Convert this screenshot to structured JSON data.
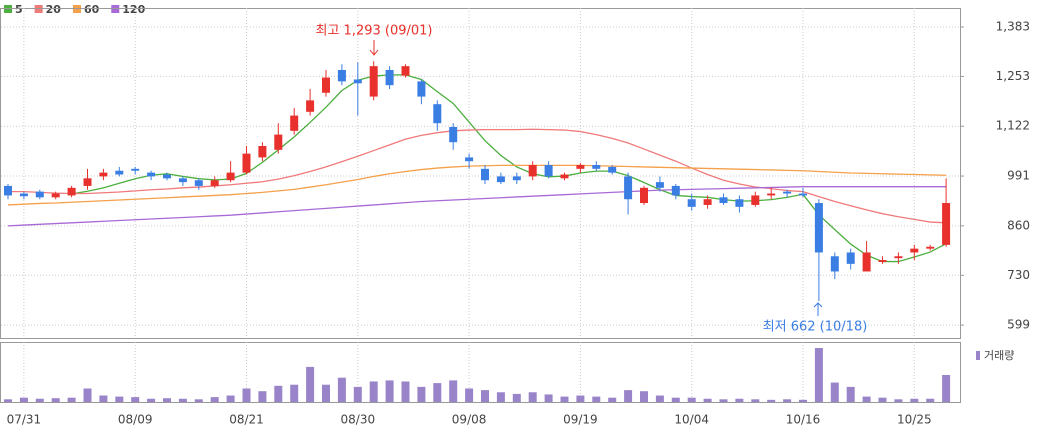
{
  "chart_data": {
    "type": "candlestick",
    "categories": [
      null,
      "07/31",
      null,
      null,
      null,
      null,
      null,
      null,
      "08/09",
      null,
      null,
      null,
      null,
      null,
      null,
      "08/21",
      null,
      null,
      null,
      null,
      null,
      null,
      "08/30",
      null,
      null,
      null,
      null,
      null,
      null,
      "09/08",
      null,
      null,
      null,
      null,
      null,
      null,
      "09/19",
      null,
      null,
      null,
      null,
      null,
      null,
      "10/04",
      null,
      null,
      null,
      null,
      null,
      null,
      "10/16",
      null,
      null,
      null,
      null,
      null,
      null,
      "10/25",
      null,
      null
    ],
    "open": [
      965,
      945,
      950,
      935,
      940,
      965,
      990,
      1005,
      1010,
      1000,
      995,
      985,
      980,
      965,
      980,
      1000,
      1040,
      1060,
      1110,
      1160,
      1210,
      1270,
      1245,
      1200,
      1270,
      1255,
      1240,
      1180,
      1120,
      1040,
      1010,
      990,
      990,
      990,
      1020,
      985,
      1010,
      1020,
      1015,
      990,
      920,
      975,
      965,
      930,
      915,
      935,
      930,
      915,
      940,
      950,
      945,
      920,
      780,
      790,
      740,
      765,
      775,
      790,
      800,
      810
    ],
    "high": [
      970,
      950,
      955,
      950,
      965,
      1010,
      1010,
      1015,
      1015,
      1005,
      1000,
      990,
      985,
      990,
      1030,
      1070,
      1080,
      1130,
      1170,
      1220,
      1270,
      1285,
      1290,
      1293,
      1280,
      1285,
      1245,
      1190,
      1130,
      1050,
      1020,
      1000,
      1000,
      1030,
      1030,
      1000,
      1025,
      1030,
      1020,
      1000,
      965,
      990,
      970,
      945,
      940,
      945,
      940,
      950,
      960,
      955,
      960,
      930,
      790,
      800,
      820,
      780,
      790,
      810,
      810,
      985
    ],
    "low": [
      930,
      930,
      930,
      930,
      935,
      955,
      980,
      990,
      995,
      980,
      980,
      965,
      955,
      960,
      975,
      995,
      1030,
      1050,
      1100,
      1150,
      1200,
      1230,
      1150,
      1190,
      1220,
      1250,
      1180,
      1110,
      1060,
      1010,
      970,
      970,
      970,
      980,
      985,
      980,
      1000,
      1005,
      995,
      890,
      915,
      950,
      930,
      900,
      905,
      915,
      895,
      910,
      930,
      935,
      935,
      662,
      720,
      745,
      740,
      760,
      760,
      770,
      795,
      805
    ],
    "close": [
      940,
      938,
      935,
      945,
      960,
      985,
      1000,
      995,
      1005,
      990,
      985,
      975,
      965,
      980,
      1000,
      1050,
      1070,
      1100,
      1150,
      1190,
      1250,
      1240,
      1235,
      1280,
      1230,
      1280,
      1200,
      1130,
      1080,
      1030,
      980,
      975,
      980,
      1020,
      990,
      995,
      1020,
      1010,
      1000,
      930,
      960,
      960,
      940,
      910,
      930,
      920,
      910,
      940,
      945,
      945,
      940,
      790,
      740,
      760,
      790,
      770,
      780,
      800,
      805,
      920
    ],
    "volume": [
      5,
      8,
      6,
      7,
      8,
      25,
      12,
      10,
      9,
      6,
      7,
      6,
      5,
      9,
      12,
      25,
      20,
      30,
      32,
      65,
      32,
      45,
      28,
      38,
      40,
      38,
      28,
      35,
      40,
      25,
      22,
      18,
      15,
      18,
      14,
      10,
      12,
      10,
      8,
      22,
      20,
      12,
      8,
      8,
      6,
      5,
      6,
      5,
      4,
      5,
      4,
      100,
      36,
      28,
      10,
      8,
      5,
      6,
      6,
      50
    ],
    "volume_label": "거래량",
    "up_color": "#e8302c",
    "down_color": "#3a7ee4",
    "volume_color": "#9a84c9",
    "series": [
      {
        "name": "5",
        "color": "#4caf3f",
        "values": [
          null,
          null,
          null,
          null,
          944,
          951,
          960,
          972,
          984,
          993,
          997,
          990,
          984,
          981,
          983,
          998,
          1027,
          1060,
          1094,
          1132,
          1172,
          1216,
          1243,
          1254,
          1257,
          1257,
          1245,
          1213,
          1182,
          1133,
          1084,
          1045,
          1015,
          997,
          989,
          991,
          999,
          1004,
          1004,
          992,
          974,
          955,
          940,
          937,
          935,
          929,
          925,
          926,
          929,
          935,
          943,
          889,
          850,
          812,
          783,
          766,
          766,
          778,
          791,
          813
        ]
      },
      {
        "name": "20",
        "color": "#f07a7a",
        "values": [
          950,
          950,
          948,
          946,
          945,
          945,
          947,
          949,
          952,
          955,
          957,
          960,
          962,
          965,
          968,
          972,
          976,
          983,
          992,
          1003,
          1015,
          1029,
          1043,
          1058,
          1073,
          1088,
          1098,
          1105,
          1110,
          1112,
          1113,
          1113,
          1113,
          1114,
          1113,
          1112,
          1108,
          1100,
          1090,
          1078,
          1062,
          1046,
          1030,
          1012,
          995,
          980,
          970,
          962,
          958,
          953,
          950,
          937,
          924,
          913,
          902,
          892,
          884,
          877,
          870,
          868
        ]
      },
      {
        "name": "60",
        "color": "#f5a04a",
        "values": [
          915,
          917,
          919,
          920,
          922,
          924,
          926,
          928,
          930,
          932,
          934,
          936,
          938,
          940,
          942,
          945,
          948,
          952,
          956,
          962,
          968,
          975,
          982,
          990,
          997,
          1003,
          1008,
          1012,
          1015,
          1017,
          1018,
          1019,
          1019,
          1019,
          1019,
          1019,
          1019,
          1018,
          1017,
          1016,
          1015,
          1014,
          1013,
          1012,
          1011,
          1010,
          1009,
          1008,
          1007,
          1006,
          1005,
          1003,
          1001,
          999,
          998,
          997,
          996,
          995,
          994,
          993
        ]
      },
      {
        "name": "120",
        "color": "#a86ad6",
        "values": [
          860,
          862,
          864,
          866,
          868,
          870,
          872,
          874,
          876,
          878,
          880,
          882,
          884,
          886,
          888,
          891,
          894,
          897,
          900,
          903,
          906,
          909,
          912,
          915,
          918,
          921,
          924,
          926,
          928,
          930,
          932,
          934,
          936,
          938,
          940,
          942,
          944,
          946,
          948,
          950,
          952,
          954,
          955,
          956,
          957,
          958,
          959,
          960,
          961,
          962,
          963,
          963,
          963,
          963,
          963,
          963,
          963,
          963,
          963,
          963
        ]
      }
    ],
    "ylim": [
      565,
      1433
    ],
    "yticks": [
      {
        "value": 599,
        "label": "599"
      },
      {
        "value": 730,
        "label": "730"
      },
      {
        "value": 860,
        "label": "860"
      },
      {
        "value": 991,
        "label": "991"
      },
      {
        "value": 1122,
        "label": "1,122"
      },
      {
        "value": 1253,
        "label": "1,253"
      },
      {
        "value": 1383,
        "label": "1,383"
      }
    ],
    "volume_ylim": [
      0,
      100
    ],
    "annotations": [
      "최고 1,293 (09/01)",
      "최저 662 (10/18)"
    ],
    "grid": true
  }
}
